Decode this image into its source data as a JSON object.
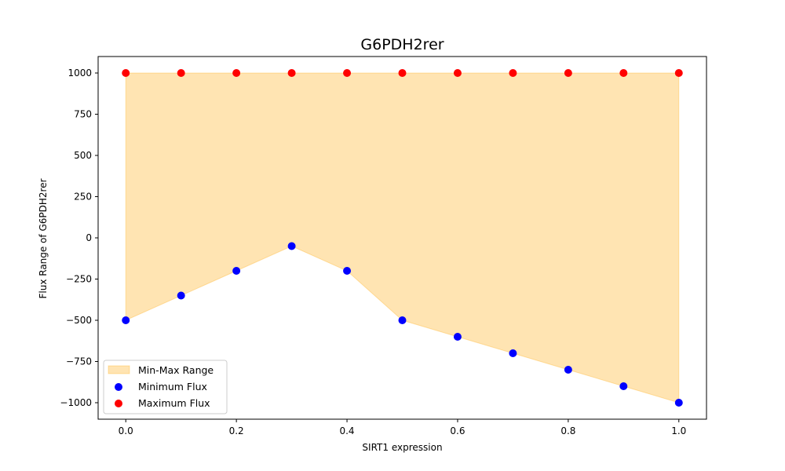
{
  "chart_data": {
    "type": "scatter",
    "title": "G6PDH2rer",
    "xlabel": "SIRT1 expression",
    "ylabel": "Flux Range of G6PDH2rer",
    "x": [
      0.0,
      0.1,
      0.2,
      0.3,
      0.4,
      0.5,
      0.6,
      0.7,
      0.8,
      0.9,
      1.0
    ],
    "series": [
      {
        "name": "Minimum Flux",
        "color": "#0000ff",
        "values": [
          -500,
          -350,
          -200,
          -50,
          -200,
          -500,
          -600,
          -700,
          -800,
          -900,
          -1000
        ]
      },
      {
        "name": "Maximum Flux",
        "color": "#ff0000",
        "values": [
          1000,
          1000,
          1000,
          1000,
          1000,
          1000,
          1000,
          1000,
          1000,
          1000,
          1000
        ]
      }
    ],
    "fill": {
      "name": "Min-Max Range",
      "color": "#ffa500",
      "opacity": 0.3
    },
    "xlim": [
      -0.05,
      1.05
    ],
    "ylim": [
      -1100,
      1100
    ],
    "xticks": [
      0.0,
      0.2,
      0.4,
      0.6,
      0.8,
      1.0
    ],
    "xtick_labels": [
      "0.0",
      "0.2",
      "0.4",
      "0.6",
      "0.8",
      "1.0"
    ],
    "yticks": [
      1000,
      750,
      500,
      250,
      0,
      -250,
      -500,
      -750,
      -1000
    ],
    "ytick_labels": [
      "1000",
      "750",
      "500",
      "250",
      "0",
      "−250",
      "−500",
      "−750",
      "−1000"
    ],
    "grid": false,
    "legend_position": "lower-left"
  }
}
